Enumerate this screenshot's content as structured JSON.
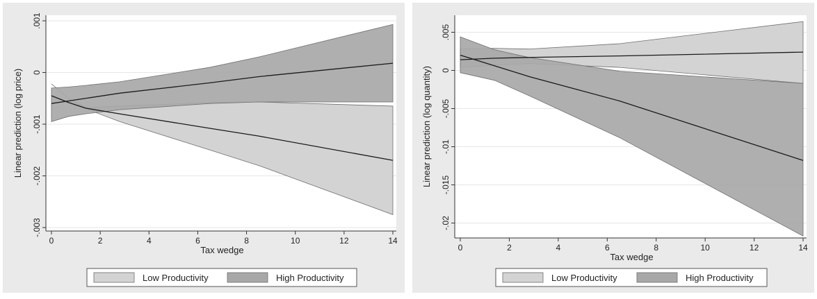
{
  "colors": {
    "panel_bg": "#eaeaea",
    "plot_bg": "#ffffff",
    "low_band": "#d3d3d3",
    "high_band": "#a8a8a8",
    "band_edge": "#6e6e6e",
    "line": "#1a1a1a",
    "grid": "#e6e6e6",
    "legend_bg": "#ffffff"
  },
  "chart_data": [
    {
      "type": "area",
      "title": "",
      "xlabel": "Tax wedge",
      "ylabel": "Linear prediction (log price)",
      "xlim": [
        0,
        14
      ],
      "ylim": [
        -0.003,
        0.001
      ],
      "xticks": [
        0,
        2,
        4,
        6,
        8,
        10,
        12,
        14
      ],
      "xtick_labels": [
        "0",
        "2",
        "4",
        "6",
        "8",
        "10",
        "12",
        "14"
      ],
      "yticks": [
        -0.003,
        -0.002,
        -0.001,
        0,
        0.001
      ],
      "ytick_labels": [
        "-.003",
        "-.002",
        "-.001",
        "0",
        ".001"
      ],
      "grid": true,
      "legend_position": "bottom",
      "series": [
        {
          "name": "Low Productivity",
          "x": [
            0,
            0.7,
            1.4,
            2.8,
            6.5,
            8.5,
            14
          ],
          "lower": [
            -0.00022,
            -0.0005,
            -0.0007,
            -0.00095,
            -0.0015,
            -0.0018,
            -0.00275
          ],
          "upper": [
            -0.00022,
            -0.0005,
            -0.00068,
            -0.00065,
            -0.00058,
            -0.00057,
            -0.00065
          ],
          "fit": [
            -0.00045,
            -0.00058,
            -0.00069,
            -0.0008,
            -0.00108,
            -0.00123,
            -0.0017
          ]
        },
        {
          "name": "High Productivity",
          "x": [
            0,
            0.7,
            1.4,
            2.8,
            6.5,
            8.5,
            14
          ],
          "lower": [
            -0.00095,
            -0.00085,
            -0.0008,
            -0.00072,
            -0.0006,
            -0.00057,
            -0.00057
          ],
          "upper": [
            -0.0003,
            -0.00028,
            -0.00025,
            -0.00018,
            0.0001,
            0.0003,
            0.00093
          ],
          "fit": [
            -0.0006,
            -0.00055,
            -0.0005,
            -0.0004,
            -0.0002,
            -8e-05,
            0.00018
          ]
        }
      ]
    },
    {
      "type": "area",
      "title": "",
      "xlabel": "Tax wedge",
      "ylabel": "Linear prediction (log quantity)",
      "xlim": [
        0,
        14
      ],
      "ylim": [
        -0.0215,
        0.0065
      ],
      "xticks": [
        0,
        2,
        4,
        6,
        8,
        10,
        12,
        14
      ],
      "xtick_labels": [
        "0",
        "2",
        "4",
        "6",
        "8",
        "10",
        "12",
        "14"
      ],
      "yticks": [
        -0.02,
        -0.015,
        -0.01,
        -0.005,
        0,
        0.005
      ],
      "ytick_labels": [
        "-.02",
        "-.015",
        "-.01",
        "-.005",
        "0",
        ".005"
      ],
      "grid": true,
      "legend_position": "bottom",
      "series": [
        {
          "name": "Low Productivity",
          "x": [
            0,
            1.4,
            2.8,
            6.5,
            14
          ],
          "lower": [
            0.0004,
            0.0007,
            0.0009,
            0.0004,
            -0.0017
          ],
          "upper": [
            0.0028,
            0.0029,
            0.0028,
            0.0035,
            0.0064
          ],
          "fit": [
            0.0014,
            0.0016,
            0.0017,
            0.0019,
            0.0024
          ]
        },
        {
          "name": "High Productivity",
          "x": [
            0,
            1.4,
            2.8,
            6.5,
            14
          ],
          "lower": [
            -0.0003,
            -0.0013,
            -0.0033,
            -0.0088,
            -0.0217
          ],
          "upper": [
            0.0044,
            0.0027,
            0.0017,
            -0.0001,
            -0.0017
          ],
          "fit": [
            0.002,
            0.0006,
            -0.0008,
            -0.004,
            -0.0118
          ]
        }
      ]
    }
  ]
}
